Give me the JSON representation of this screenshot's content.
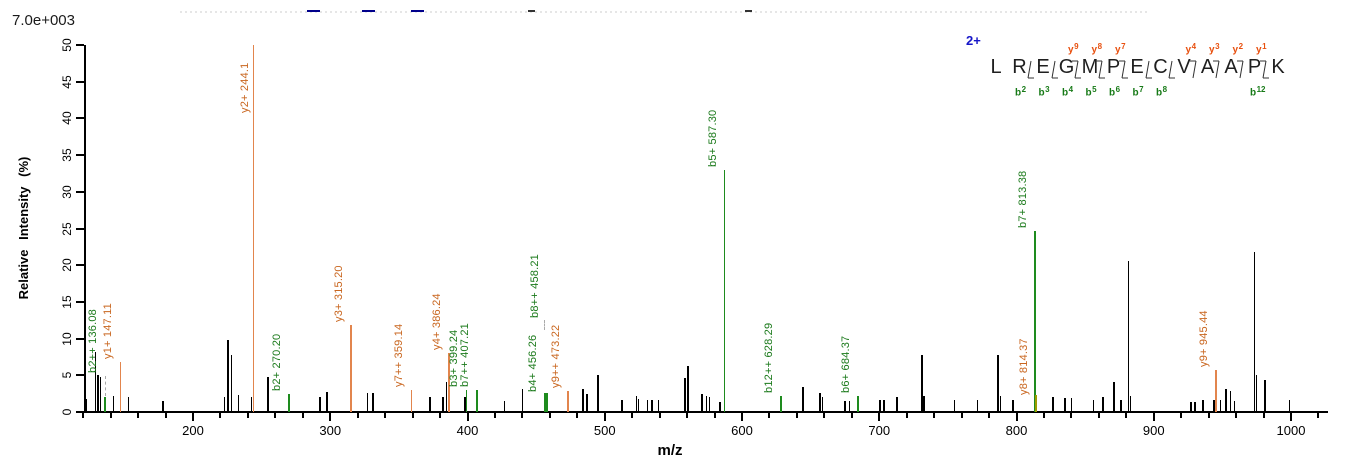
{
  "chart_data": {
    "type": "bar",
    "subtype": "peptide-fragmentation-mass-spectrum",
    "xlabel": "m/z",
    "ylabel": "Relative Intensity (%)",
    "intensity_scale_label": "7.0e+003",
    "x_range": [
      120,
      1024
    ],
    "y_range": [
      0,
      50
    ],
    "x_major_ticks": [
      200,
      300,
      400,
      500,
      600,
      700,
      800,
      900,
      1000
    ],
    "x_minor_tick_step": 20,
    "y_tick_step": 5,
    "legend": "b ions green, y ions orange, unassigned peaks black",
    "annotated_peaks": [
      {
        "ion": "b2++",
        "mz_text": "136.08",
        "mz": 136.08,
        "pct": 2.0,
        "series": "b"
      },
      {
        "ion": "y1+",
        "mz_text": "147.11",
        "mz": 147.11,
        "pct": 6.8,
        "series": "y"
      },
      {
        "ion": "y2+",
        "mz_text": "244.1",
        "mz": 244.1,
        "pct": 50.0,
        "series": "y"
      },
      {
        "ion": "b2+",
        "mz_text": "270.20",
        "mz": 270.2,
        "pct": 2.4,
        "series": "b"
      },
      {
        "ion": "y3+",
        "mz_text": "315.20",
        "mz": 315.2,
        "pct": 11.9,
        "series": "y"
      },
      {
        "ion": "y7++",
        "mz_text": "359.14",
        "mz": 359.14,
        "pct": 3.0,
        "series": "y"
      },
      {
        "ion": "y4+",
        "mz_text": "386.24",
        "mz": 386.24,
        "pct": 8.1,
        "series": "y"
      },
      {
        "ion": "b3+",
        "mz_text": "399.24",
        "mz": 399.24,
        "pct": 3.0,
        "series": "b"
      },
      {
        "ion": "b7++",
        "mz_text": "407.21",
        "mz": 407.21,
        "pct": 3.0,
        "series": "b"
      },
      {
        "ion": "b4+",
        "mz_text": "456.26",
        "mz": 456.26,
        "pct": 2.6,
        "series": "b"
      },
      {
        "ion": "b8++",
        "mz_text": "458.21",
        "mz": 458.21,
        "pct": 2.6,
        "series": "b"
      },
      {
        "ion": "y9++",
        "mz_text": "473.22",
        "mz": 473.22,
        "pct": 2.9,
        "series": "y"
      },
      {
        "ion": "b5+",
        "mz_text": "587.30",
        "mz": 587.3,
        "pct": 33.0,
        "series": "b"
      },
      {
        "ion": "b12++",
        "mz_text": "628.29",
        "mz": 628.29,
        "pct": 2.2,
        "series": "b"
      },
      {
        "ion": "b6+",
        "mz_text": "684.37",
        "mz": 684.37,
        "pct": 2.2,
        "series": "b"
      },
      {
        "ion": "b7+",
        "mz_text": "813.38",
        "mz": 813.38,
        "pct": 24.6,
        "series": "b"
      },
      {
        "ion": "y8+",
        "mz_text": "814.37",
        "mz": 814.37,
        "pct": 2.3,
        "series": "y",
        "overlap": true
      },
      {
        "ion": "y9+",
        "mz_text": "945.44",
        "mz": 945.44,
        "pct": 5.7,
        "series": "y"
      }
    ],
    "unlabeled_peaks": [
      [
        122,
        1.8
      ],
      [
        129,
        8.2
      ],
      [
        130.8,
        5.0
      ],
      [
        132.6,
        4.8
      ],
      [
        142,
        2.2
      ],
      [
        153,
        2.0
      ],
      [
        178,
        1.5
      ],
      [
        223,
        2.0
      ],
      [
        225.5,
        9.8
      ],
      [
        228,
        7.7
      ],
      [
        233,
        2.3
      ],
      [
        242.5,
        2.0
      ],
      [
        254.5,
        4.8
      ],
      [
        292.5,
        2.0
      ],
      [
        297.5,
        2.7
      ],
      [
        327,
        2.6
      ],
      [
        331,
        2.6
      ],
      [
        372.5,
        2.0
      ],
      [
        382,
        2.0
      ],
      [
        384.8,
        4.1
      ],
      [
        398,
        2.0
      ],
      [
        427,
        1.5
      ],
      [
        440,
        3.2
      ],
      [
        484,
        3.2
      ],
      [
        487,
        2.4
      ],
      [
        495,
        5.0
      ],
      [
        512.5,
        1.6
      ],
      [
        523,
        2.2
      ],
      [
        524.5,
        1.8
      ],
      [
        531,
        1.7
      ],
      [
        534.5,
        1.7
      ],
      [
        539,
        1.6
      ],
      [
        558.5,
        4.6
      ],
      [
        560.5,
        6.3
      ],
      [
        571,
        2.5
      ],
      [
        574,
        2.2
      ],
      [
        576.5,
        2.0
      ],
      [
        584,
        1.4
      ],
      [
        644.5,
        3.4
      ],
      [
        657,
        2.6
      ],
      [
        658.5,
        2.0
      ],
      [
        675,
        1.5
      ],
      [
        678.5,
        1.5
      ],
      [
        700.5,
        1.7
      ],
      [
        703.5,
        1.7
      ],
      [
        713,
        2.0
      ],
      [
        731,
        7.8
      ],
      [
        732.5,
        2.2
      ],
      [
        755,
        1.7
      ],
      [
        771.5,
        1.6
      ],
      [
        786.5,
        7.8
      ],
      [
        788.5,
        2.2
      ],
      [
        797.5,
        1.7
      ],
      [
        826.5,
        2.1
      ],
      [
        835.5,
        1.9
      ],
      [
        840,
        1.9
      ],
      [
        856,
        1.6
      ],
      [
        863,
        2.1
      ],
      [
        871,
        4.1
      ],
      [
        876,
        1.6
      ],
      [
        881.5,
        20.6
      ],
      [
        883,
        2.2
      ],
      [
        927,
        1.4
      ],
      [
        930,
        1.4
      ],
      [
        936,
        1.6
      ],
      [
        944,
        1.7
      ],
      [
        948.5,
        1.7
      ],
      [
        952.5,
        3.1
      ],
      [
        956,
        2.9
      ],
      [
        959,
        1.5
      ],
      [
        973.5,
        21.8
      ],
      [
        975,
        5.0
      ],
      [
        981,
        4.4
      ],
      [
        999,
        1.7
      ]
    ]
  },
  "peptide": {
    "charge_label": "2+",
    "sequence": "LREGMPECVAAPK",
    "residues": [
      "L",
      "R",
      "E",
      "G",
      "M",
      "P",
      "E",
      "C",
      "V",
      "A",
      "A",
      "P",
      "K"
    ],
    "cleavages": [
      {
        "after": 2,
        "b": "b2"
      },
      {
        "after": 3,
        "b": "b3"
      },
      {
        "after": 4,
        "b": "b4",
        "y": "y9"
      },
      {
        "after": 5,
        "b": "b5",
        "y": "y8"
      },
      {
        "after": 6,
        "b": "b6",
        "y": "y7"
      },
      {
        "after": 7,
        "b": "b7"
      },
      {
        "after": 8,
        "b": "b8"
      },
      {
        "after": 9,
        "y": "y4"
      },
      {
        "after": 10,
        "y": "y3"
      },
      {
        "after": 11,
        "y": "y2"
      },
      {
        "after": 12,
        "b": "b12",
        "y": "y1"
      }
    ]
  },
  "colors": {
    "b_line": "#1e8b1e",
    "b_text": "#1b7a1b",
    "y_line": "#e2854d",
    "y_text": "#c9661f",
    "overlap_line": "#9c9c00",
    "peak_black": "#000000",
    "charge_blue": "#1515c8",
    "seq_y_label": "#e8500f",
    "seq_b_label": "#177a17",
    "seq_letter": "#1f1f1f",
    "artifact_blue": "#00008b"
  },
  "top_artifacts": {
    "blue_dash_x": [
      307,
      362,
      411
    ],
    "dark_dash_x": [
      528,
      745
    ]
  }
}
